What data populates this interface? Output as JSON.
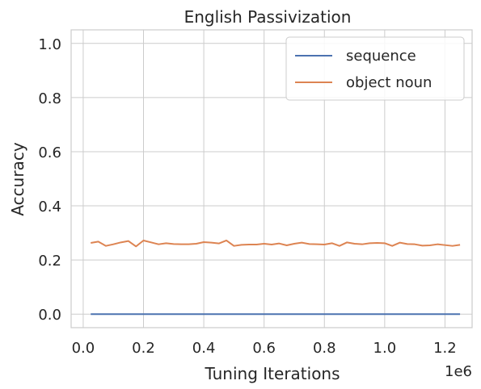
{
  "chart_data": {
    "type": "line",
    "title": "English Passivization",
    "xlabel": "Tuning Iterations",
    "ylabel": "Accuracy",
    "x_offset_text": "1e6",
    "xlim": [
      -0.04,
      1.29
    ],
    "ylim": [
      -0.05,
      1.05
    ],
    "x_ticks": [
      0.0,
      0.2,
      0.4,
      0.6,
      0.8,
      1.0,
      1.2
    ],
    "x_tick_labels": [
      "0.0",
      "0.2",
      "0.4",
      "0.6",
      "0.8",
      "1.0",
      "1.2"
    ],
    "y_ticks": [
      0.0,
      0.2,
      0.4,
      0.6,
      0.8,
      1.0
    ],
    "y_tick_labels": [
      "0.0",
      "0.2",
      "0.4",
      "0.6",
      "0.8",
      "1.0"
    ],
    "grid": true,
    "legend_position": "top-right",
    "x": [
      0.025,
      0.05,
      0.075,
      0.1,
      0.125,
      0.15,
      0.175,
      0.2,
      0.225,
      0.25,
      0.275,
      0.3,
      0.325,
      0.35,
      0.375,
      0.4,
      0.425,
      0.45,
      0.475,
      0.5,
      0.525,
      0.55,
      0.575,
      0.6,
      0.625,
      0.65,
      0.675,
      0.7,
      0.725,
      0.75,
      0.775,
      0.8,
      0.825,
      0.85,
      0.875,
      0.9,
      0.925,
      0.95,
      0.975,
      1.0,
      1.025,
      1.05,
      1.075,
      1.1,
      1.125,
      1.15,
      1.175,
      1.2,
      1.225,
      1.25
    ],
    "series": [
      {
        "name": "sequence",
        "color": "#4c72b0",
        "values": [
          0,
          0,
          0,
          0,
          0,
          0,
          0,
          0,
          0,
          0,
          0,
          0,
          0,
          0,
          0,
          0,
          0,
          0,
          0,
          0,
          0,
          0,
          0,
          0,
          0,
          0,
          0,
          0,
          0,
          0,
          0,
          0,
          0,
          0,
          0,
          0,
          0,
          0,
          0,
          0,
          0,
          0,
          0,
          0,
          0,
          0,
          0,
          0,
          0,
          0
        ]
      },
      {
        "name": "object noun",
        "color": "#dd8452",
        "values": [
          0.263,
          0.268,
          0.252,
          0.258,
          0.265,
          0.27,
          0.25,
          0.272,
          0.265,
          0.258,
          0.262,
          0.259,
          0.258,
          0.258,
          0.26,
          0.266,
          0.264,
          0.261,
          0.272,
          0.252,
          0.256,
          0.257,
          0.257,
          0.26,
          0.257,
          0.261,
          0.254,
          0.26,
          0.264,
          0.259,
          0.258,
          0.257,
          0.262,
          0.252,
          0.265,
          0.26,
          0.258,
          0.262,
          0.263,
          0.262,
          0.252,
          0.264,
          0.259,
          0.258,
          0.253,
          0.254,
          0.258,
          0.255,
          0.252,
          0.256
        ]
      }
    ]
  }
}
